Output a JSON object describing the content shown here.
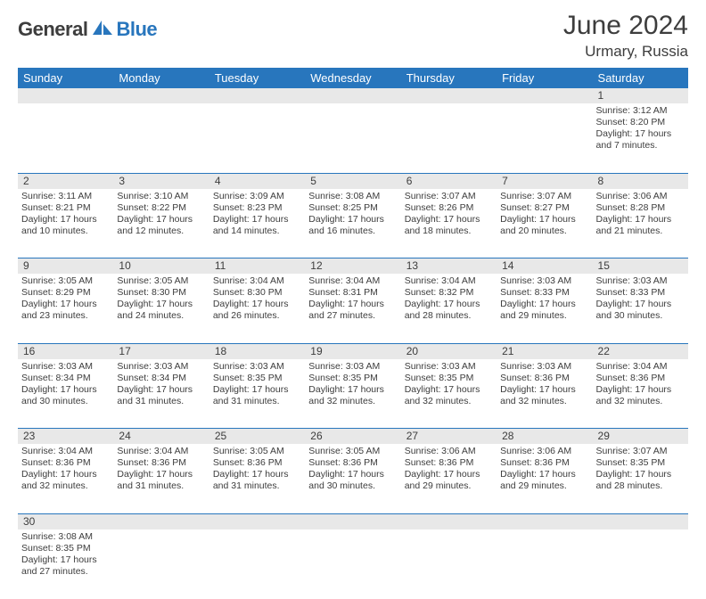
{
  "logo": {
    "text1": "General",
    "text2": "Blue"
  },
  "title": "June 2024",
  "location": "Urmary, Russia",
  "colors": {
    "header_bg": "#2876bd",
    "header_fg": "#ffffff",
    "daynum_bg": "#e8e8e8",
    "text": "#3d3d3d",
    "logo_blue": "#2876bd"
  },
  "weekdays": [
    "Sunday",
    "Monday",
    "Tuesday",
    "Wednesday",
    "Thursday",
    "Friday",
    "Saturday"
  ],
  "weeks": [
    [
      null,
      null,
      null,
      null,
      null,
      null,
      {
        "n": "1",
        "sr": "3:12 AM",
        "ss": "8:20 PM",
        "dl": "17 hours and 7 minutes."
      }
    ],
    [
      {
        "n": "2",
        "sr": "3:11 AM",
        "ss": "8:21 PM",
        "dl": "17 hours and 10 minutes."
      },
      {
        "n": "3",
        "sr": "3:10 AM",
        "ss": "8:22 PM",
        "dl": "17 hours and 12 minutes."
      },
      {
        "n": "4",
        "sr": "3:09 AM",
        "ss": "8:23 PM",
        "dl": "17 hours and 14 minutes."
      },
      {
        "n": "5",
        "sr": "3:08 AM",
        "ss": "8:25 PM",
        "dl": "17 hours and 16 minutes."
      },
      {
        "n": "6",
        "sr": "3:07 AM",
        "ss": "8:26 PM",
        "dl": "17 hours and 18 minutes."
      },
      {
        "n": "7",
        "sr": "3:07 AM",
        "ss": "8:27 PM",
        "dl": "17 hours and 20 minutes."
      },
      {
        "n": "8",
        "sr": "3:06 AM",
        "ss": "8:28 PM",
        "dl": "17 hours and 21 minutes."
      }
    ],
    [
      {
        "n": "9",
        "sr": "3:05 AM",
        "ss": "8:29 PM",
        "dl": "17 hours and 23 minutes."
      },
      {
        "n": "10",
        "sr": "3:05 AM",
        "ss": "8:30 PM",
        "dl": "17 hours and 24 minutes."
      },
      {
        "n": "11",
        "sr": "3:04 AM",
        "ss": "8:30 PM",
        "dl": "17 hours and 26 minutes."
      },
      {
        "n": "12",
        "sr": "3:04 AM",
        "ss": "8:31 PM",
        "dl": "17 hours and 27 minutes."
      },
      {
        "n": "13",
        "sr": "3:04 AM",
        "ss": "8:32 PM",
        "dl": "17 hours and 28 minutes."
      },
      {
        "n": "14",
        "sr": "3:03 AM",
        "ss": "8:33 PM",
        "dl": "17 hours and 29 minutes."
      },
      {
        "n": "15",
        "sr": "3:03 AM",
        "ss": "8:33 PM",
        "dl": "17 hours and 30 minutes."
      }
    ],
    [
      {
        "n": "16",
        "sr": "3:03 AM",
        "ss": "8:34 PM",
        "dl": "17 hours and 30 minutes."
      },
      {
        "n": "17",
        "sr": "3:03 AM",
        "ss": "8:34 PM",
        "dl": "17 hours and 31 minutes."
      },
      {
        "n": "18",
        "sr": "3:03 AM",
        "ss": "8:35 PM",
        "dl": "17 hours and 31 minutes."
      },
      {
        "n": "19",
        "sr": "3:03 AM",
        "ss": "8:35 PM",
        "dl": "17 hours and 32 minutes."
      },
      {
        "n": "20",
        "sr": "3:03 AM",
        "ss": "8:35 PM",
        "dl": "17 hours and 32 minutes."
      },
      {
        "n": "21",
        "sr": "3:03 AM",
        "ss": "8:36 PM",
        "dl": "17 hours and 32 minutes."
      },
      {
        "n": "22",
        "sr": "3:04 AM",
        "ss": "8:36 PM",
        "dl": "17 hours and 32 minutes."
      }
    ],
    [
      {
        "n": "23",
        "sr": "3:04 AM",
        "ss": "8:36 PM",
        "dl": "17 hours and 32 minutes."
      },
      {
        "n": "24",
        "sr": "3:04 AM",
        "ss": "8:36 PM",
        "dl": "17 hours and 31 minutes."
      },
      {
        "n": "25",
        "sr": "3:05 AM",
        "ss": "8:36 PM",
        "dl": "17 hours and 31 minutes."
      },
      {
        "n": "26",
        "sr": "3:05 AM",
        "ss": "8:36 PM",
        "dl": "17 hours and 30 minutes."
      },
      {
        "n": "27",
        "sr": "3:06 AM",
        "ss": "8:36 PM",
        "dl": "17 hours and 29 minutes."
      },
      {
        "n": "28",
        "sr": "3:06 AM",
        "ss": "8:36 PM",
        "dl": "17 hours and 29 minutes."
      },
      {
        "n": "29",
        "sr": "3:07 AM",
        "ss": "8:35 PM",
        "dl": "17 hours and 28 minutes."
      }
    ],
    [
      {
        "n": "30",
        "sr": "3:08 AM",
        "ss": "8:35 PM",
        "dl": "17 hours and 27 minutes."
      },
      null,
      null,
      null,
      null,
      null,
      null
    ]
  ],
  "labels": {
    "sunrise": "Sunrise:",
    "sunset": "Sunset:",
    "daylight": "Daylight:"
  }
}
